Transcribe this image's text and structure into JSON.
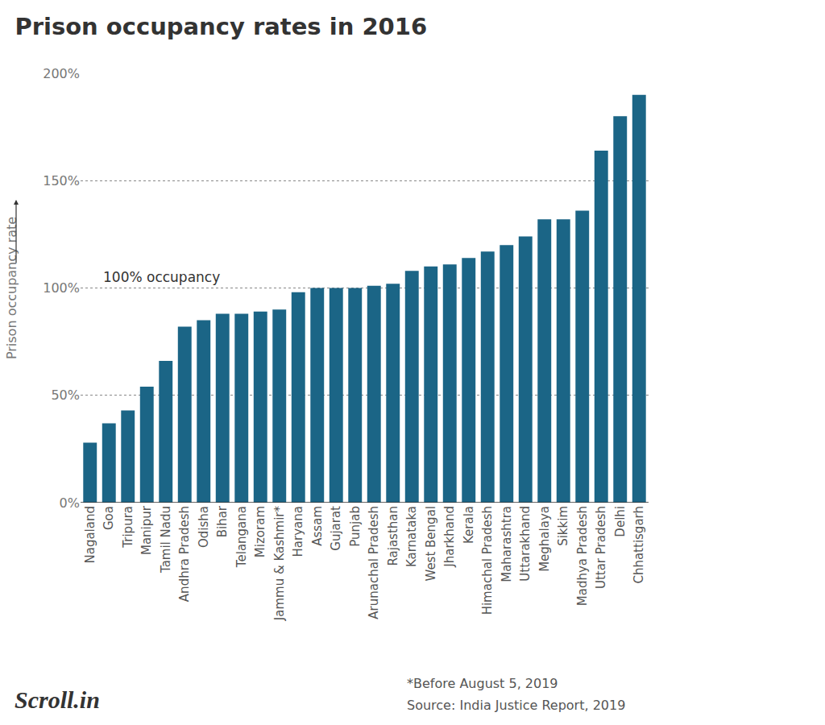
{
  "chart_data": {
    "type": "bar",
    "title": "Prison occupancy rates in 2016",
    "y_label": "Prison occupancy rate",
    "categories": [
      "Nagaland",
      "Goa",
      "Tripura",
      "Manipur",
      "Tamil Nadu",
      "Andhra Pradesh",
      "Odisha",
      "Bihar",
      "Telangana",
      "Mizoram",
      "Jammu & Kashmir*",
      "Haryana",
      "Assam",
      "Gujarat",
      "Punjab",
      "Arunachal Pradesh",
      "Rajasthan",
      "Karnataka",
      "West Bengal",
      "Jharkhand",
      "Kerala",
      "Himachal Pradesh",
      "Maharashtra",
      "Uttarakhand",
      "Meghalaya",
      "Sikkim",
      "Madhya Pradesh",
      "Uttar Pradesh",
      "Delhi",
      "Chhattisgarh"
    ],
    "values": [
      28,
      37,
      43,
      54,
      66,
      82,
      85,
      88,
      88,
      89,
      90,
      98,
      100,
      100,
      100,
      101,
      102,
      108,
      110,
      111,
      114,
      117,
      120,
      124,
      132,
      132,
      136,
      164,
      180,
      190
    ],
    "color": "#1b6586",
    "ylim": [
      0,
      200
    ],
    "yticks": [
      {
        "value": 0,
        "label": "0%"
      },
      {
        "value": 50,
        "label": "50%"
      },
      {
        "value": 100,
        "label": "100%"
      },
      {
        "value": 150,
        "label": "150%"
      },
      {
        "value": 200,
        "label": "200%"
      }
    ],
    "grid": true,
    "annotations": [
      {
        "text": "100% occupancy",
        "x": "Goa",
        "y": 100
      }
    ],
    "note": "*Before August 5, 2019",
    "source": "Source: India Justice Report, 2019",
    "credit": "Scroll.in"
  }
}
